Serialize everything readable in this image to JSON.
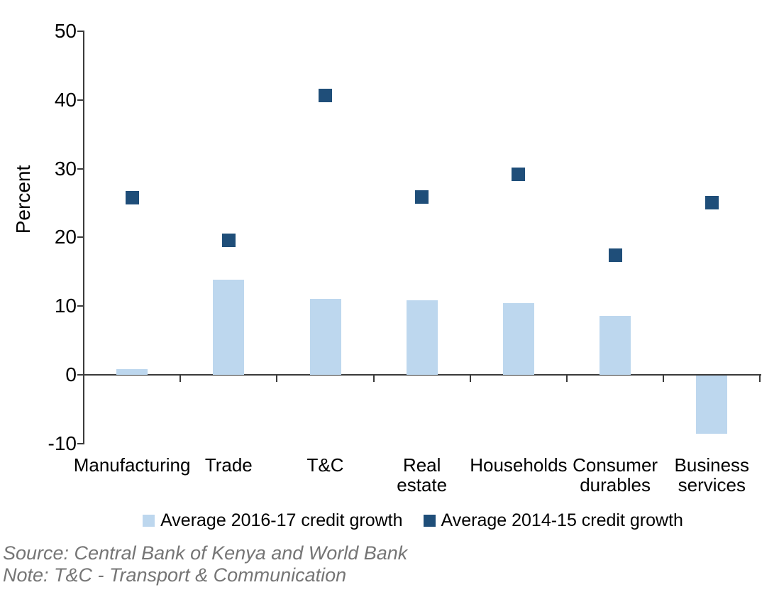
{
  "chart_data": {
    "type": "bar",
    "title": "",
    "ylabel": "Percent",
    "xlabel": "",
    "categories": [
      "Manufacturing",
      "Trade",
      "T&C",
      "Real estate",
      "Households",
      "Consumer durables",
      "Business services"
    ],
    "category_label_lines": [
      [
        "Manufacturing"
      ],
      [
        "Trade"
      ],
      [
        "T&C"
      ],
      [
        "Real",
        "estate"
      ],
      [
        "Households"
      ],
      [
        "Consumer",
        "durables"
      ],
      [
        "Business",
        "services"
      ]
    ],
    "series": [
      {
        "name": "Average 2016-17 credit growth",
        "mark": "bar",
        "color": "#BDD7EE",
        "values": [
          0.8,
          13.8,
          11.1,
          10.8,
          10.4,
          8.6,
          -8.5
        ]
      },
      {
        "name": "Average 2014-15 credit growth",
        "mark": "square",
        "color": "#1F4E79",
        "values": [
          25.8,
          19.6,
          40.6,
          25.9,
          29.2,
          17.4,
          25.1
        ]
      }
    ],
    "ylim": [
      -10,
      50
    ],
    "yticks": [
      50,
      40,
      30,
      20,
      10,
      0,
      -10
    ],
    "grid": false,
    "legend_position": "bottom"
  },
  "footer": {
    "source": "Source: Central Bank of Kenya and World Bank",
    "note": "Note: T&C - Transport & Communication"
  },
  "colors": {
    "bar_fill": "#BDD7EE",
    "marker_fill": "#1F4E79",
    "axis": "#3A3A3A",
    "footer_text": "#757575"
  }
}
